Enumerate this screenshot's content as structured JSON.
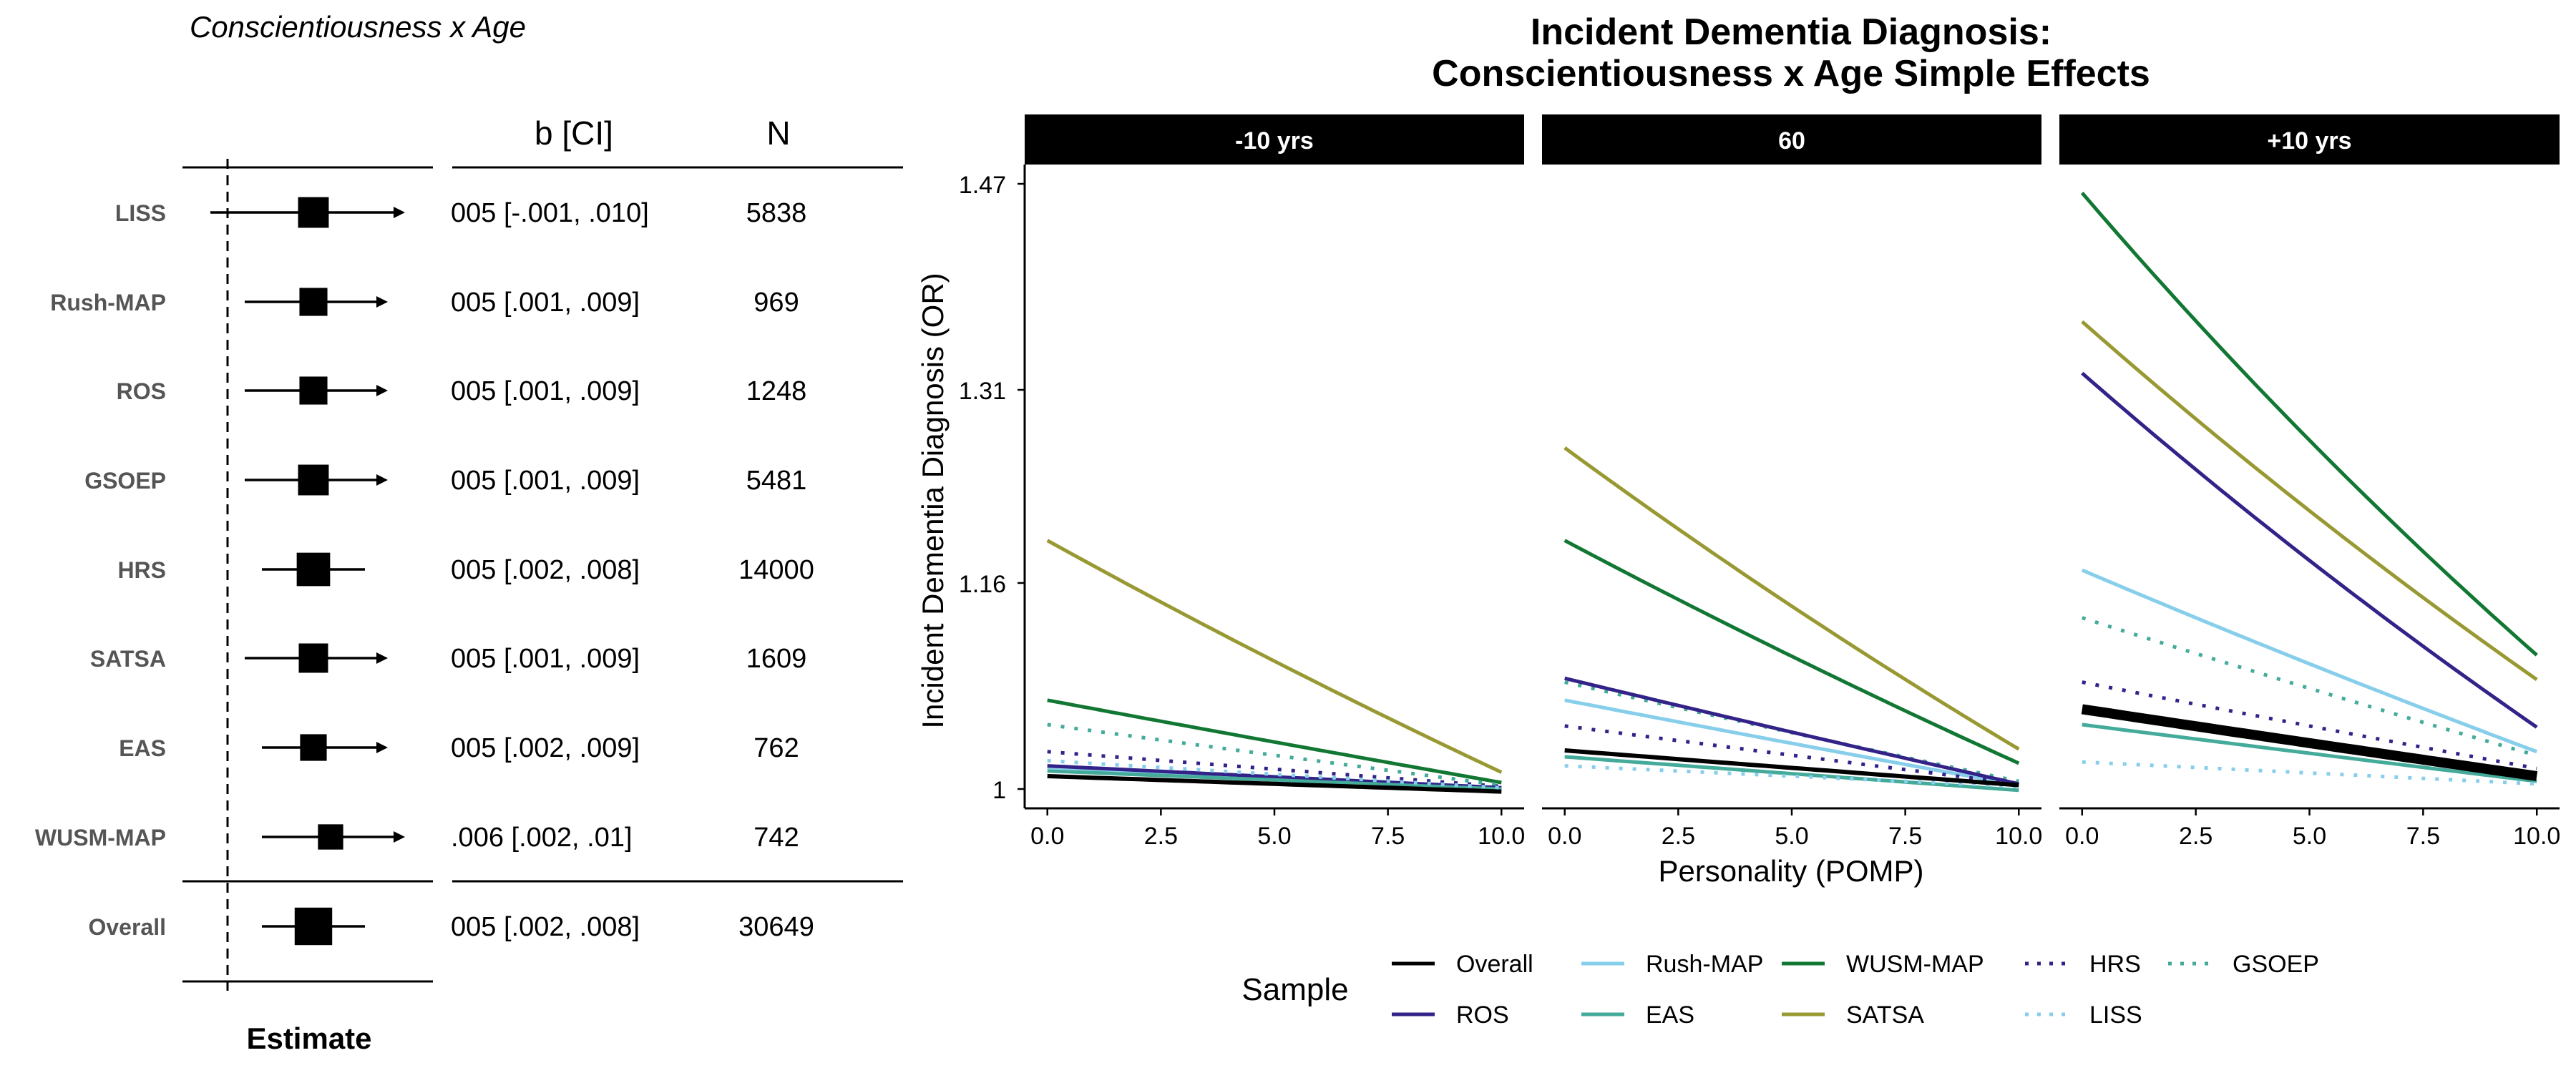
{
  "forest": {
    "title": "Conscientiousness x Age",
    "col_ci": "b [CI]",
    "col_n": "N",
    "xlabel": "Estimate",
    "rows": [
      {
        "label": "LISS",
        "ci": "005 [-.001, .010]",
        "n": "5838",
        "est": 0.005,
        "lo": -0.001,
        "hi": 0.01,
        "weight": 0.55,
        "arrow_hi": true
      },
      {
        "label": "Rush-MAP",
        "ci": "005 [.001, .009]",
        "n": "969",
        "est": 0.005,
        "lo": 0.001,
        "hi": 0.009,
        "weight": 0.45,
        "arrow_hi": true
      },
      {
        "label": "ROS",
        "ci": "005 [.001, .009]",
        "n": "1248",
        "est": 0.005,
        "lo": 0.001,
        "hi": 0.009,
        "weight": 0.45,
        "arrow_hi": true
      },
      {
        "label": "GSOEP",
        "ci": "005 [.001, .009]",
        "n": "5481",
        "est": 0.005,
        "lo": 0.001,
        "hi": 0.009,
        "weight": 0.55,
        "arrow_hi": true
      },
      {
        "label": "HRS",
        "ci": "005 [.002, .008]",
        "n": "14000",
        "est": 0.005,
        "lo": 0.002,
        "hi": 0.008,
        "weight": 0.65,
        "arrow_hi": false
      },
      {
        "label": "SATSA",
        "ci": "005 [.001, .009]",
        "n": "1609",
        "est": 0.005,
        "lo": 0.001,
        "hi": 0.009,
        "weight": 0.5,
        "arrow_hi": true
      },
      {
        "label": "EAS",
        "ci": "005 [.002, .009]",
        "n": "762",
        "est": 0.005,
        "lo": 0.002,
        "hi": 0.009,
        "weight": 0.4,
        "arrow_hi": true
      },
      {
        "label": "WUSM-MAP",
        "ci": ".006 [.002, .01]",
        "n": "742",
        "est": 0.006,
        "lo": 0.002,
        "hi": 0.01,
        "weight": 0.35,
        "arrow_hi": true
      }
    ],
    "overall": {
      "label": "Overall",
      "ci": "005 [.002, .008]",
      "n": "30649",
      "est": 0.005,
      "lo": 0.002,
      "hi": 0.008,
      "weight": 0.8,
      "arrow_hi": false
    }
  },
  "chart_data": {
    "type": "line",
    "title_line1": "Incident Dementia Diagnosis:",
    "title_line2": "Conscientiousness x Age Simple Effects",
    "xlabel": "Personality (POMP)",
    "ylabel": "Incident Dementia Diagnosis (OR)",
    "ylim": [
      0.985,
      1.485
    ],
    "y_ticks": [
      "1",
      "1.16",
      "1.31",
      "1.47"
    ],
    "y_tick_values": [
      1.0,
      1.16,
      1.31,
      1.47
    ],
    "x_ticks": [
      "0.0",
      "2.5",
      "5.0",
      "7.5",
      "10.0"
    ],
    "x_tick_values": [
      0,
      2.5,
      5,
      7.5,
      10
    ],
    "xlim": [
      -0.5,
      10.5
    ],
    "legend_title": "Sample",
    "legend_position": "bottom",
    "panels": [
      {
        "label": "-10 yrs",
        "series": [
          {
            "name": "Overall",
            "start": 1.01,
            "end": 0.998
          },
          {
            "name": "Rush-MAP",
            "start": 1.017,
            "end": 1.001
          },
          {
            "name": "WUSM-MAP",
            "start": 1.069,
            "end": 1.005
          },
          {
            "name": "HRS",
            "start": 1.029,
            "end": 1.002
          },
          {
            "name": "GSOEP",
            "start": 1.05,
            "end": 1.003
          },
          {
            "name": "ROS",
            "start": 1.018,
            "end": 1.001
          },
          {
            "name": "EAS",
            "start": 1.014,
            "end": 1.0
          },
          {
            "name": "SATSA",
            "start": 1.193,
            "end": 1.013
          },
          {
            "name": "LISS",
            "start": 1.022,
            "end": 1.001
          }
        ]
      },
      {
        "label": "60",
        "series": [
          {
            "name": "Overall",
            "start": 1.03,
            "end": 1.003
          },
          {
            "name": "Rush-MAP",
            "start": 1.069,
            "end": 1.003
          },
          {
            "name": "WUSM-MAP",
            "start": 1.193,
            "end": 1.02
          },
          {
            "name": "HRS",
            "start": 1.049,
            "end": 1.004
          },
          {
            "name": "GSOEP",
            "start": 1.083,
            "end": 1.006
          },
          {
            "name": "ROS",
            "start": 1.086,
            "end": 1.004
          },
          {
            "name": "EAS",
            "start": 1.025,
            "end": 0.999
          },
          {
            "name": "SATSA",
            "start": 1.265,
            "end": 1.031
          },
          {
            "name": "LISS",
            "start": 1.018,
            "end": 1.002
          }
        ]
      },
      {
        "label": "+10 yrs",
        "series": [
          {
            "name": "Overall",
            "start": 1.062,
            "end": 1.01
          },
          {
            "name": "Rush-MAP",
            "start": 1.17,
            "end": 1.029
          },
          {
            "name": "WUSM-MAP",
            "start": 1.463,
            "end": 1.104
          },
          {
            "name": "HRS",
            "start": 1.083,
            "end": 1.016
          },
          {
            "name": "GSOEP",
            "start": 1.133,
            "end": 1.026
          },
          {
            "name": "ROS",
            "start": 1.323,
            "end": 1.048
          },
          {
            "name": "EAS",
            "start": 1.05,
            "end": 1.006
          },
          {
            "name": "SATSA",
            "start": 1.363,
            "end": 1.085
          },
          {
            "name": "LISS",
            "start": 1.021,
            "end": 1.004
          }
        ]
      }
    ],
    "legend": [
      {
        "name": "Overall",
        "color": "#000000",
        "dash": "solid"
      },
      {
        "name": "Rush-MAP",
        "color": "#87CEEB",
        "dash": "solid"
      },
      {
        "name": "WUSM-MAP",
        "color": "#117733",
        "dash": "solid"
      },
      {
        "name": "HRS",
        "color": "#332288",
        "dash": "dotted"
      },
      {
        "name": "GSOEP",
        "color": "#44AA99",
        "dash": "dotted"
      },
      {
        "name": "ROS",
        "color": "#332288",
        "dash": "solid"
      },
      {
        "name": "EAS",
        "color": "#44AA99",
        "dash": "solid"
      },
      {
        "name": "SATSA",
        "color": "#999933",
        "dash": "solid"
      },
      {
        "name": "LISS",
        "color": "#87CEEB",
        "dash": "dotted"
      }
    ]
  }
}
